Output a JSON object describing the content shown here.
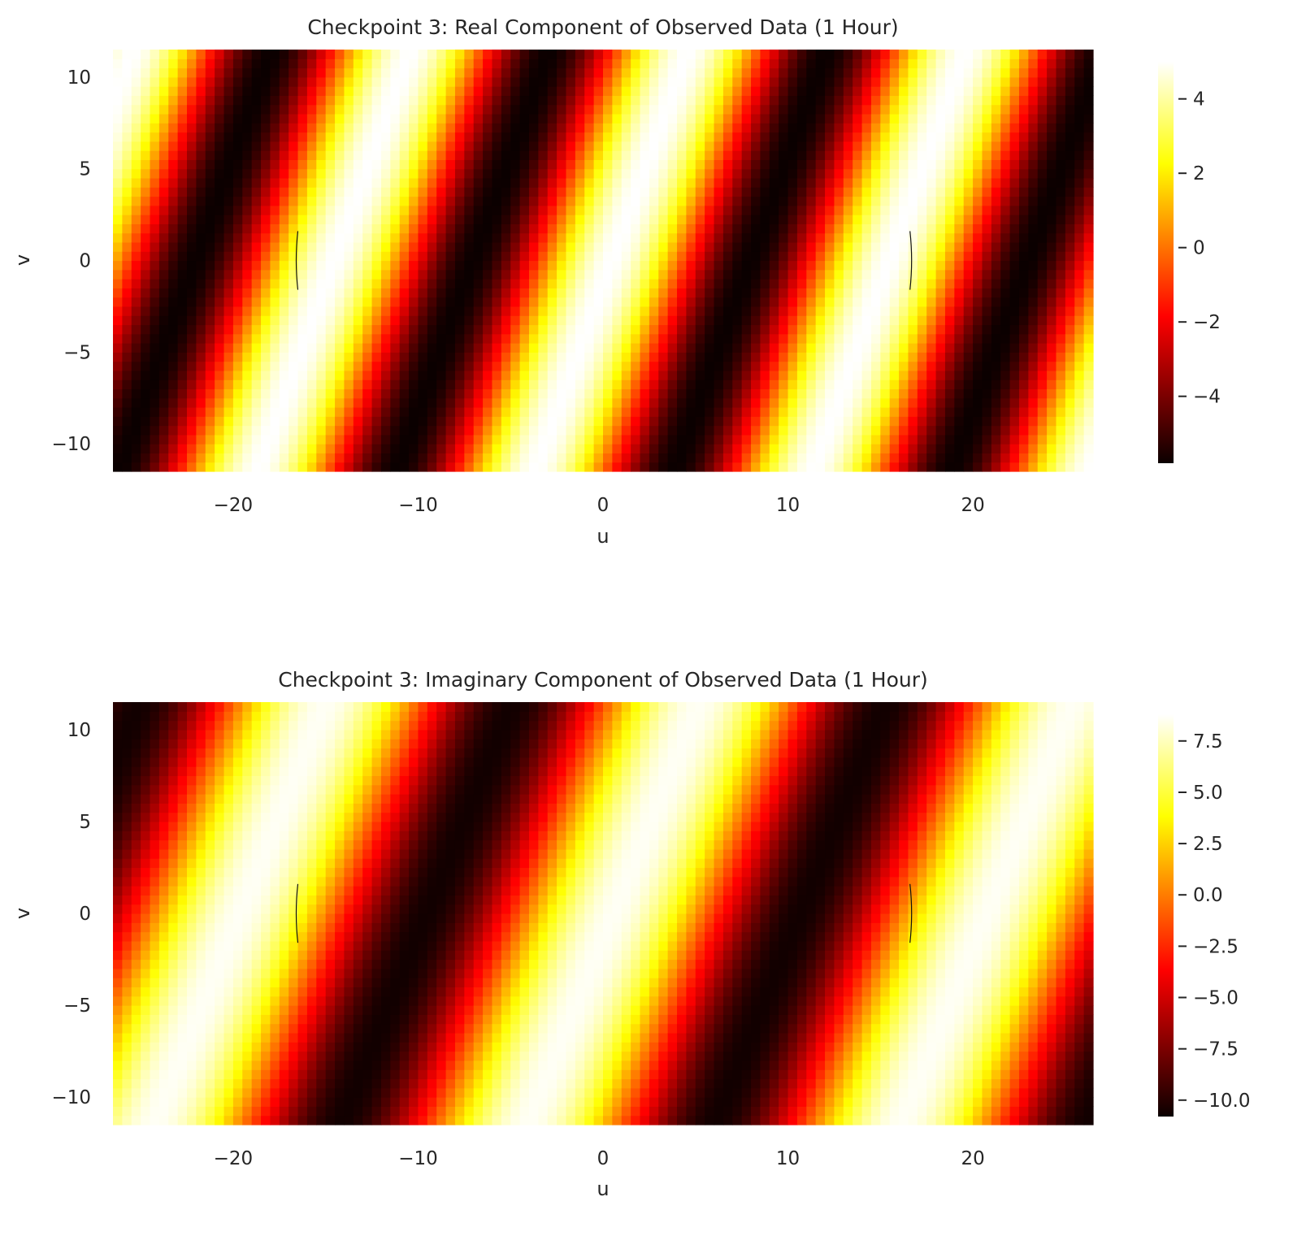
{
  "chart_data": [
    {
      "type": "heatmap",
      "title": "Checkpoint 3: Real Component of Observed Data (1 Hour)",
      "xlabel": "u",
      "ylabel": "v",
      "xlim": [
        -26.5,
        26.5
      ],
      "ylim": [
        -11.5,
        11.5
      ],
      "xticks": [
        -20,
        -10,
        0,
        10,
        20
      ],
      "xtick_labels": [
        "−20",
        "−10",
        "0",
        "10",
        "20"
      ],
      "yticks": [
        -10,
        -5,
        0,
        5,
        10
      ],
      "ytick_labels": [
        "−10",
        "−5",
        "0",
        "5",
        "10"
      ],
      "colormap": "hot",
      "colorbar": {
        "min": -5.8,
        "max": 5.0,
        "ticks": [
          -4,
          -2,
          0,
          2,
          4
        ],
        "tick_labels": [
          "−4",
          "−2",
          "0",
          "2",
          "4"
        ]
      },
      "field": {
        "description": "sinusoidal fringe pattern",
        "amplitude": 5.4,
        "offset": -0.4,
        "u_frequency": 0.0666,
        "v_frequency": -0.024,
        "phase": -0.2
      },
      "arcs_u": [
        -16.5,
        16.6
      ],
      "grid": false,
      "legend": "none"
    },
    {
      "type": "heatmap",
      "title": "Checkpoint 3: Imaginary Component of Observed Data (1 Hour)",
      "xlabel": "u",
      "ylabel": "v",
      "xlim": [
        -26.5,
        26.5
      ],
      "ylim": [
        -11.5,
        11.5
      ],
      "xticks": [
        -20,
        -10,
        0,
        10,
        20
      ],
      "xtick_labels": [
        "−20",
        "−10",
        "0",
        "10",
        "20"
      ],
      "yticks": [
        -10,
        -5,
        0,
        5,
        10
      ],
      "ytick_labels": [
        "−10",
        "−5",
        "0",
        "5",
        "10"
      ],
      "colormap": "hot",
      "colorbar": {
        "min": -10.8,
        "max": 8.8,
        "ticks": [
          -10.0,
          -7.5,
          -5.0,
          -2.5,
          0.0,
          2.5,
          5.0,
          7.5
        ],
        "tick_labels": [
          "−10.0",
          "−7.5",
          "−5.0",
          "−2.5",
          "0.0",
          "2.5",
          "5.0",
          "7.5"
        ]
      },
      "field": {
        "description": "sinusoidal fringe pattern",
        "amplitude": 9.6,
        "offset": -1.0,
        "u_frequency": 0.0495,
        "v_frequency": -0.02,
        "phase": -0.18
      },
      "arcs_u": [
        -16.5,
        16.6
      ],
      "grid": false,
      "legend": "none"
    }
  ]
}
